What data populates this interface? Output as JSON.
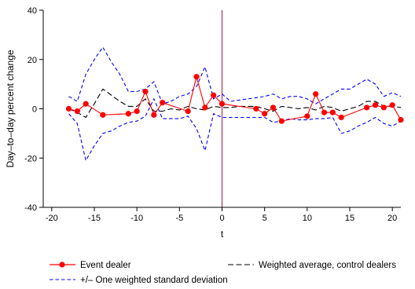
{
  "chart_data": {
    "type": "line",
    "xlabel": "t",
    "ylabel": "Day–to–day percent change",
    "xlim": [
      -21,
      21
    ],
    "ylim": [
      -40,
      40
    ],
    "xticks": [
      -20,
      -15,
      -10,
      -5,
      0,
      5,
      10,
      15,
      20
    ],
    "yticks": [
      -40,
      -20,
      0,
      20,
      40
    ],
    "vline": 0,
    "grid": false,
    "legend_position": "bottom",
    "colors": {
      "event": "#ff0000",
      "control": "#000000",
      "std": "#0000ff",
      "vline": "#b03060"
    },
    "series": [
      {
        "name": "Event dealer",
        "style": "solid-markers",
        "x": [
          -18,
          -17,
          -16,
          -14,
          -11,
          -10,
          -9,
          -8,
          -7,
          -4,
          -3,
          -2,
          -1,
          0,
          4,
          5,
          6,
          7,
          10,
          11,
          12,
          13,
          14,
          17,
          18,
          19,
          20,
          21
        ],
        "y": [
          0,
          -1,
          2,
          -2.5,
          -2,
          -1,
          7,
          -2.5,
          2.5,
          -1,
          13,
          0.5,
          5.5,
          2,
          0,
          -2,
          0.5,
          -5,
          -3,
          6,
          -1.5,
          -1.5,
          -3.5,
          0.5,
          1.5,
          0.5,
          1.5,
          -4.5
        ]
      },
      {
        "name": "Weighted average, control dealers",
        "style": "long-dash",
        "x": [
          -18,
          -17,
          -16,
          -15,
          -14,
          -13,
          -12,
          -11,
          -10,
          -9,
          -8,
          -7,
          -6,
          -5,
          -4,
          -3,
          -2,
          -1,
          0,
          1,
          2,
          3,
          4,
          5,
          6,
          7,
          8,
          9,
          10,
          11,
          12,
          13,
          14,
          15,
          16,
          17,
          18,
          19,
          20,
          21
        ],
        "y": [
          0,
          -1.5,
          -3.5,
          2,
          8,
          5.5,
          3,
          1,
          1,
          4,
          -1,
          -1,
          0,
          -0.5,
          1,
          0,
          -0.5,
          1,
          0.5,
          0.5,
          1,
          1,
          1,
          0,
          -1,
          1,
          0.5,
          0,
          0.5,
          -0.5,
          1,
          0.5,
          -1,
          0,
          1,
          3,
          3,
          1,
          1,
          0.5
        ]
      },
      {
        "name": "+/– One weighted standard deviation",
        "style": "short-dash",
        "upper": {
          "x": [
            -18,
            -17,
            -16,
            -15,
            -14,
            -13,
            -12,
            -11,
            -10,
            -9,
            -8,
            -7,
            -6,
            -5,
            -4,
            -3,
            -2,
            -1,
            0,
            1,
            2,
            3,
            4,
            5,
            6,
            7,
            8,
            9,
            10,
            11,
            12,
            13,
            14,
            15,
            16,
            17,
            18,
            19,
            20,
            21
          ],
          "y": [
            5,
            3,
            14,
            20,
            25,
            19,
            14,
            7,
            7,
            8,
            11,
            2,
            3,
            5,
            6,
            9,
            17,
            4,
            6,
            3,
            3.5,
            4,
            4.5,
            5,
            6,
            4,
            5,
            5,
            4,
            2,
            4,
            6,
            8,
            8,
            10,
            12,
            10,
            5,
            6.5,
            5
          ]
        },
        "lower": {
          "x": [
            -18,
            -17,
            -16,
            -15,
            -14,
            -13,
            -12,
            -11,
            -10,
            -9,
            -8,
            -7,
            -6,
            -5,
            -4,
            -3,
            -2,
            -1,
            0,
            1,
            2,
            3,
            4,
            5,
            6,
            7,
            8,
            9,
            10,
            11,
            12,
            13,
            14,
            15,
            16,
            17,
            18,
            19,
            20,
            21
          ],
          "y": [
            -2,
            -6,
            -21,
            -15,
            -10,
            -9,
            -7,
            -5.5,
            -5,
            -3,
            4,
            -4,
            -4,
            -4,
            -3,
            -8,
            -17,
            -2,
            -3.5,
            -3.5,
            -3.5,
            -3.5,
            -3.5,
            -3.5,
            -5.5,
            -5,
            -4,
            -4.5,
            -4.5,
            -4,
            -4,
            -3.5,
            -10,
            -9,
            -7,
            -5.5,
            -3.5,
            -6,
            -7,
            -5
          ]
        }
      }
    ]
  }
}
